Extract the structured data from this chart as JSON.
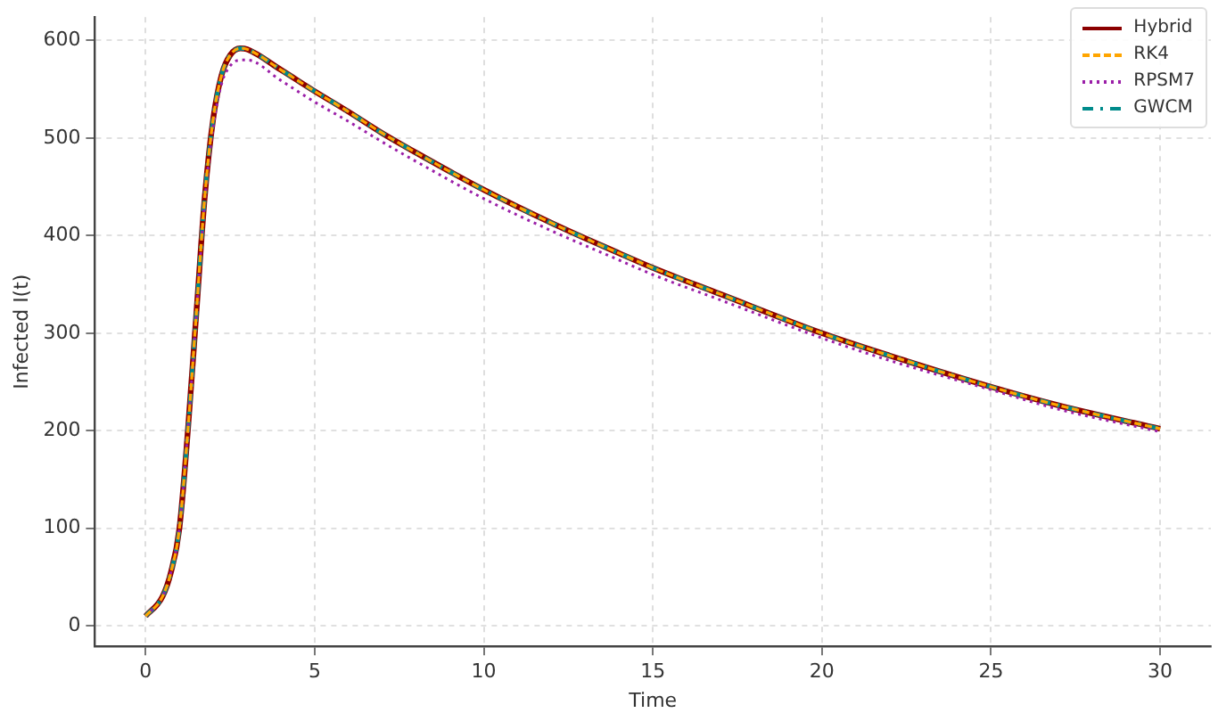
{
  "chart_data": {
    "type": "line",
    "xlabel": "Time",
    "ylabel": "Infected I(t)",
    "xlim": [
      -1.5,
      31.5
    ],
    "ylim": [
      -21,
      624
    ],
    "xticks": [
      0,
      5,
      10,
      15,
      20,
      25,
      30
    ],
    "yticks": [
      0,
      100,
      200,
      300,
      400,
      500,
      600
    ],
    "grid": true,
    "legend": "top right",
    "marker": "none",
    "x": [
      0,
      0.5,
      0.75,
      1,
      1.25,
      1.5,
      1.75,
      2,
      2.25,
      2.5,
      2.8,
      3,
      4,
      5,
      6,
      7,
      8,
      10,
      12,
      14,
      15,
      17,
      20,
      22,
      25,
      27,
      30
    ],
    "series": [
      {
        "name": "Hybrid",
        "color": "#8b0000",
        "line_style": "solid",
        "values": [
          10,
          30,
          55,
          100,
          200,
          320,
          440,
          520,
          565,
          585,
          592,
          591,
          570,
          548,
          527,
          505,
          485,
          447,
          413,
          382,
          367,
          340,
          300,
          277,
          245,
          226,
          202
        ]
      },
      {
        "name": "RK4",
        "color": "#ffa500",
        "line_style": "dashed",
        "values": [
          10,
          30,
          55,
          100,
          200,
          320,
          440,
          520,
          565,
          585,
          592,
          591,
          570,
          548,
          527,
          505,
          485,
          447,
          413,
          382,
          367,
          340,
          300,
          277,
          245,
          226,
          202
        ]
      },
      {
        "name": "RPSM7",
        "color": "#9b1fa8",
        "line_style": "dotted",
        "values": [
          10,
          30,
          55,
          100,
          200,
          318,
          436,
          512,
          556,
          574,
          580,
          580,
          559,
          537,
          517,
          496,
          476,
          438,
          405,
          375,
          360,
          334,
          295,
          272,
          242,
          222,
          199
        ]
      },
      {
        "name": "GWCM",
        "color": "#008b8b",
        "line_style": "dashdot",
        "values": [
          10,
          30,
          55,
          100,
          200,
          320,
          440,
          520,
          565,
          585,
          592,
          591,
          570,
          548,
          527,
          505,
          485,
          447,
          413,
          382,
          367,
          340,
          300,
          277,
          245,
          226,
          202
        ]
      }
    ]
  }
}
